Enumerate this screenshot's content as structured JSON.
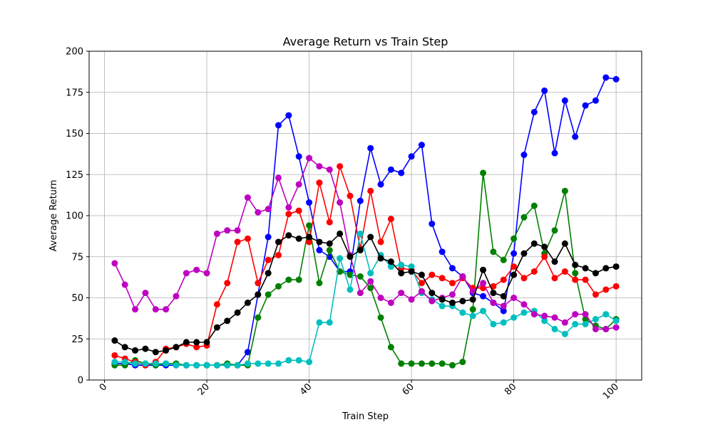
{
  "chart_data": {
    "type": "line",
    "title": "Average Return vs Train Step",
    "xlabel": "Train Step",
    "ylabel": "Average Return",
    "xlim": [
      -3,
      105
    ],
    "ylim": [
      0,
      200
    ],
    "xticks": [
      0,
      20,
      40,
      60,
      80,
      100
    ],
    "yticks": [
      0,
      25,
      50,
      75,
      100,
      125,
      150,
      175,
      200
    ],
    "grid": true,
    "marker": "circle",
    "x": [
      2,
      4,
      6,
      8,
      10,
      12,
      14,
      16,
      18,
      20,
      22,
      24,
      26,
      28,
      30,
      32,
      34,
      36,
      38,
      40,
      42,
      44,
      46,
      48,
      50,
      52,
      54,
      56,
      58,
      60,
      62,
      64,
      66,
      68,
      70,
      72,
      74,
      76,
      78,
      80,
      82,
      84,
      86,
      88,
      90,
      92,
      94,
      96,
      98,
      100
    ],
    "series": [
      {
        "color": "#0000ff",
        "values": [
          10,
          10,
          9,
          9,
          9,
          9,
          9,
          9,
          9,
          9,
          9,
          9,
          9,
          17,
          52,
          87,
          155,
          161,
          136,
          108,
          79,
          75,
          66,
          66,
          109,
          141,
          119,
          128,
          126,
          136,
          143,
          95,
          78,
          68,
          63,
          53,
          51,
          47,
          42,
          77,
          137,
          163,
          176,
          138,
          170,
          148,
          167,
          170,
          184,
          183
        ]
      },
      {
        "color": "#008000",
        "values": [
          9,
          9,
          12,
          10,
          9,
          10,
          10,
          9,
          9,
          9,
          9,
          10,
          9,
          9,
          38,
          52,
          57,
          61,
          61,
          94,
          59,
          79,
          66,
          64,
          63,
          56,
          38,
          20,
          10,
          10,
          10,
          10,
          10,
          9,
          11,
          43,
          126,
          78,
          73,
          86,
          99,
          106,
          77,
          91,
          115,
          65,
          37,
          33,
          31,
          37
        ]
      },
      {
        "color": "#ff0000",
        "values": [
          15,
          13,
          11,
          9,
          11,
          19,
          20,
          22,
          20,
          21,
          46,
          59,
          84,
          86,
          59,
          73,
          76,
          101,
          103,
          84,
          120,
          96,
          130,
          112,
          80,
          115,
          84,
          98,
          68,
          67,
          59,
          64,
          62,
          59,
          62,
          56,
          56,
          57,
          61,
          69,
          62,
          66,
          75,
          62,
          66,
          61,
          61,
          52,
          55,
          57
        ]
      },
      {
        "color": "#00bfbf",
        "values": [
          11,
          11,
          10,
          10,
          10,
          10,
          9,
          9,
          9,
          9,
          9,
          9,
          9,
          10,
          10,
          10,
          10,
          12,
          12,
          11,
          35,
          35,
          74,
          55,
          89,
          65,
          76,
          69,
          70,
          69,
          53,
          49,
          45,
          45,
          41,
          39,
          42,
          34,
          35,
          38,
          41,
          42,
          36,
          31,
          28,
          34,
          34,
          37,
          40,
          36
        ]
      },
      {
        "color": "#bf00bf",
        "values": [
          71,
          58,
          43,
          53,
          43,
          43,
          51,
          65,
          67,
          65,
          89,
          91,
          91,
          111,
          102,
          104,
          123,
          105,
          119,
          135,
          130,
          128,
          108,
          76,
          53,
          60,
          50,
          47,
          53,
          49,
          54,
          48,
          50,
          52,
          63,
          54,
          59,
          47,
          45,
          50,
          46,
          40,
          39,
          38,
          35,
          40,
          40,
          31,
          31,
          32
        ]
      },
      {
        "color": "#000000",
        "values": [
          24,
          20,
          18,
          19,
          17,
          18,
          20,
          23,
          23,
          23,
          32,
          36,
          41,
          47,
          52,
          65,
          84,
          88,
          86,
          87,
          84,
          83,
          89,
          75,
          79,
          87,
          74,
          72,
          65,
          66,
          64,
          53,
          49,
          47,
          48,
          49,
          67,
          53,
          51,
          64,
          77,
          83,
          81,
          72,
          83,
          70,
          68,
          65,
          68,
          69
        ]
      }
    ]
  }
}
